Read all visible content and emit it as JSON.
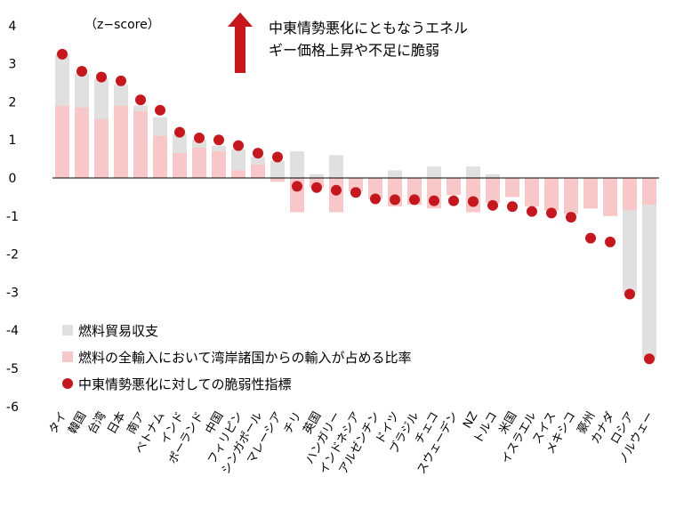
{
  "chart_data": {
    "type": "bar",
    "ylabel": "（z−score）",
    "ylim": [
      -6,
      4
    ],
    "yticks": [
      4,
      3,
      2,
      1,
      0,
      -1,
      -2,
      -3,
      -4,
      -5,
      -6
    ],
    "categories": [
      "タイ",
      "韓国",
      "台湾",
      "日本",
      "南ア",
      "ベトナム",
      "インド",
      "ポーランド",
      "中国",
      "フィリピン",
      "シンガポール",
      "マレーシア",
      "チリ",
      "英国",
      "ハンガリー",
      "インドネシア",
      "アルゼンチン",
      "ドイツ",
      "ブラジル",
      "チェコ",
      "スウェーデン",
      "NZ",
      "トルコ",
      "米国",
      "イスラエル",
      "スイス",
      "メキシコ",
      "豪州",
      "カナダ",
      "ロシア",
      "ノルウェー"
    ],
    "series": [
      {
        "name": "燃料貿易収支",
        "color": "#e0e0e0",
        "values": [
          3.25,
          2.75,
          2.6,
          2.45,
          1.9,
          1.6,
          1.15,
          1.0,
          0.85,
          0.75,
          0.55,
          0.45,
          0.7,
          0.1,
          0.6,
          -0.1,
          -0.35,
          0.2,
          -0.35,
          0.3,
          -0.4,
          0.3,
          0.1,
          -0.4,
          -0.35,
          -0.35,
          -0.3,
          -0.8,
          -0.65,
          -3.0,
          -4.75
        ]
      },
      {
        "name": "燃料の全輸入において湾岸諸国からの輸入が占める比率",
        "color": "#f8c8c8",
        "values": [
          1.9,
          1.85,
          1.55,
          1.9,
          1.75,
          1.1,
          0.65,
          0.8,
          0.7,
          0.2,
          0.35,
          -0.1,
          -0.9,
          -0.25,
          -0.9,
          -0.35,
          -0.55,
          -0.75,
          -0.7,
          -0.8,
          -0.45,
          -0.9,
          -0.65,
          -0.5,
          -0.75,
          -0.85,
          -0.95,
          -0.8,
          -1.0,
          -0.85,
          -0.7
        ]
      },
      {
        "name": "中東情勢悪化に対しての脆弱性指標",
        "color": "#c8161d",
        "values": [
          3.25,
          2.8,
          2.65,
          2.55,
          2.05,
          1.78,
          1.2,
          1.05,
          1.0,
          0.85,
          0.65,
          0.55,
          -0.22,
          -0.25,
          -0.32,
          -0.38,
          -0.55,
          -0.57,
          -0.57,
          -0.6,
          -0.6,
          -0.62,
          -0.72,
          -0.75,
          -0.88,
          -0.92,
          -1.03,
          -1.58,
          -1.68,
          -3.05,
          -4.75
        ]
      }
    ],
    "legend_position": "bottom-left",
    "annotation": {
      "text_line1": "中東情勢悪化にともなうエネル",
      "text_line2": "ギー価格上昇や不足に脆弱",
      "arrow_direction": "up"
    },
    "grid": false
  },
  "accent_color": "#c8161d"
}
